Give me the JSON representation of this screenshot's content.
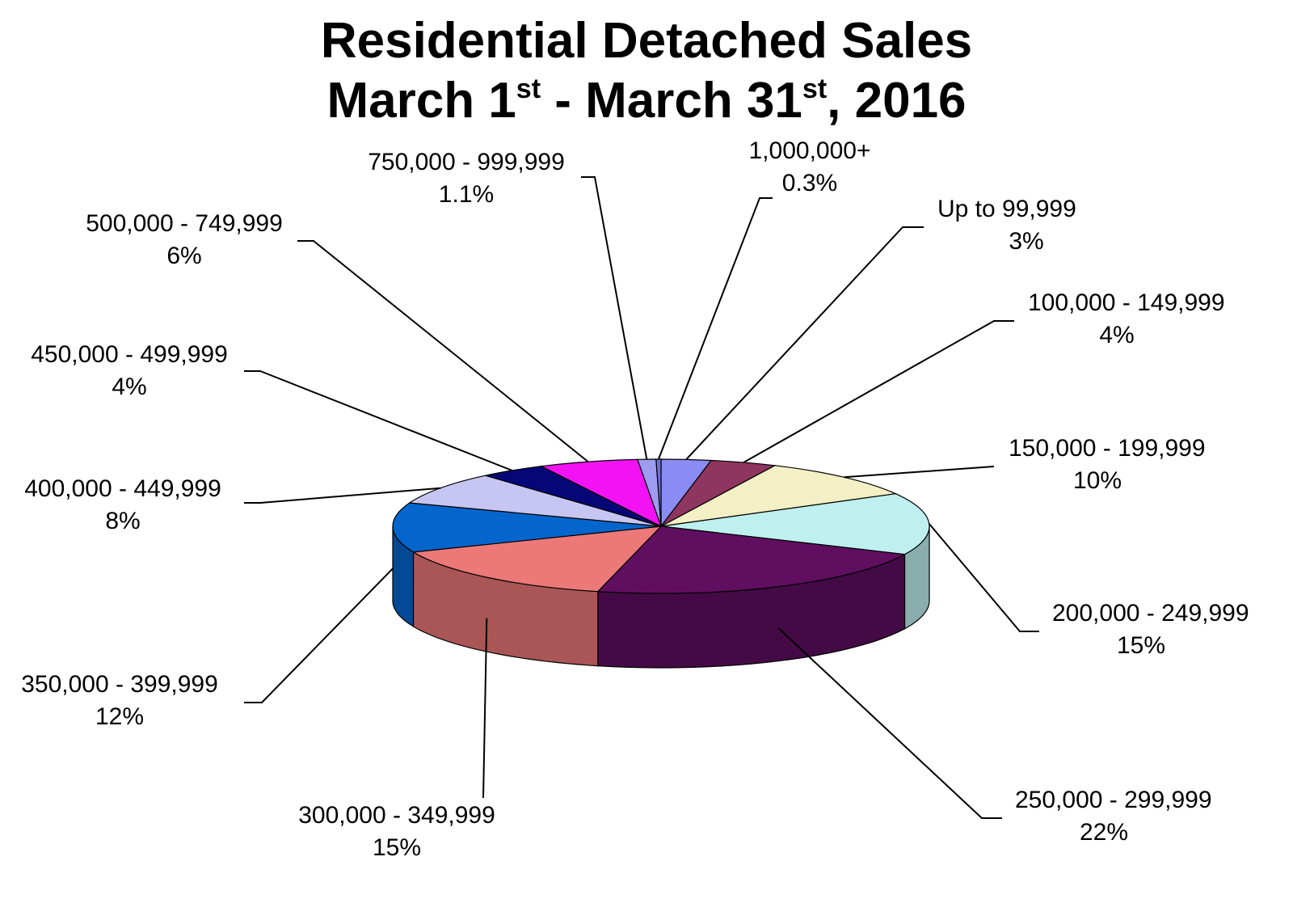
{
  "chart_data": {
    "type": "pie",
    "title_line1": "Residential Detached Sales",
    "title_line2": {
      "part1": "March 1",
      "sup1": "st",
      "part2": " - March 31",
      "sup2": "st",
      "part3": ", 2016"
    },
    "slices": [
      {
        "label": "Up to 99,999",
        "value_label": "3%",
        "value": 3,
        "color": "#8b8cf3"
      },
      {
        "label": "100,000 - 149,999",
        "value_label": "4%",
        "value": 4,
        "color": "#8e3560"
      },
      {
        "label": "150,000 - 199,999",
        "value_label": "10%",
        "value": 10,
        "color": "#f2f0c4"
      },
      {
        "label": "200,000 - 249,999",
        "value_label": "15%",
        "value": 15,
        "color": "#bff0f0"
      },
      {
        "label": "250,000 - 299,999",
        "value_label": "22%",
        "value": 22,
        "color": "#5f0e60"
      },
      {
        "label": "300,000 - 349,999",
        "value_label": "15%",
        "value": 15,
        "color": "#ec7878"
      },
      {
        "label": "350,000 - 399,999",
        "value_label": "12%",
        "value": 12,
        "color": "#0466cc"
      },
      {
        "label": "400,000 - 449,999",
        "value_label": "8%",
        "value": 8,
        "color": "#c7c6f2"
      },
      {
        "label": "450,000 - 499,999",
        "value_label": "4%",
        "value": 4,
        "color": "#050677"
      },
      {
        "label": "500,000 - 749,999",
        "value_label": "6%",
        "value": 6,
        "color": "#f312f3"
      },
      {
        "label": "750,000 - 999,999",
        "value_label": "1.1%",
        "value": 1.1,
        "color": "#9e9cf0"
      },
      {
        "label": "1,000,000+",
        "value_label": "0.3%",
        "value": 0.3,
        "color": "#6e6fd8"
      }
    ],
    "legend": "none"
  }
}
